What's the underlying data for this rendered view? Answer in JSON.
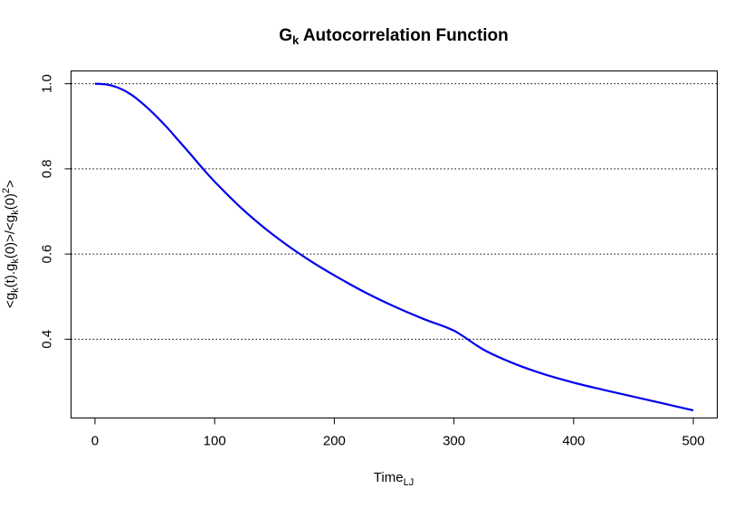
{
  "chart_data": {
    "type": "line",
    "title": {
      "main": "G",
      "sub": "k",
      "rest": " Autocorrelation Function"
    },
    "xlabel": {
      "main": "Time",
      "sub": "LJ"
    },
    "ylabel": {
      "parts": [
        {
          "t": "<g",
          "s": false
        },
        {
          "t": "k",
          "s": true
        },
        {
          "t": "(t).g",
          "s": false
        },
        {
          "t": "k",
          "s": true
        },
        {
          "t": "(0)>/<g",
          "s": false
        },
        {
          "t": "k",
          "s": true
        },
        {
          "t": "(0)",
          "s": false
        },
        {
          "t": "2",
          "s": "sup"
        },
        {
          "t": ">",
          "s": false
        }
      ]
    },
    "xlim": [
      -20,
      520
    ],
    "ylim": [
      0.215,
      1.03
    ],
    "xticks": [
      0,
      100,
      200,
      300,
      400,
      500
    ],
    "yticks": [
      0.4,
      0.6,
      0.8,
      1.0
    ],
    "ytick_labels": [
      "0.4",
      "0.6",
      "0.8",
      "1.0"
    ],
    "grid": "horizontal dotted at y ticks",
    "series": [
      {
        "color": "#0000ee",
        "x": [
          0,
          10,
          20,
          30,
          40,
          50,
          60,
          70,
          80,
          90,
          100,
          120,
          140,
          160,
          180,
          200,
          225,
          250,
          275,
          300,
          325,
          350,
          375,
          400,
          425,
          450,
          475,
          500
        ],
        "y": [
          1.0,
          0.998,
          0.99,
          0.975,
          0.953,
          0.927,
          0.898,
          0.866,
          0.834,
          0.801,
          0.77,
          0.714,
          0.665,
          0.622,
          0.584,
          0.55,
          0.511,
          0.477,
          0.447,
          0.42,
          0.375,
          0.343,
          0.318,
          0.298,
          0.281,
          0.265,
          0.249,
          0.233
        ]
      }
    ]
  }
}
